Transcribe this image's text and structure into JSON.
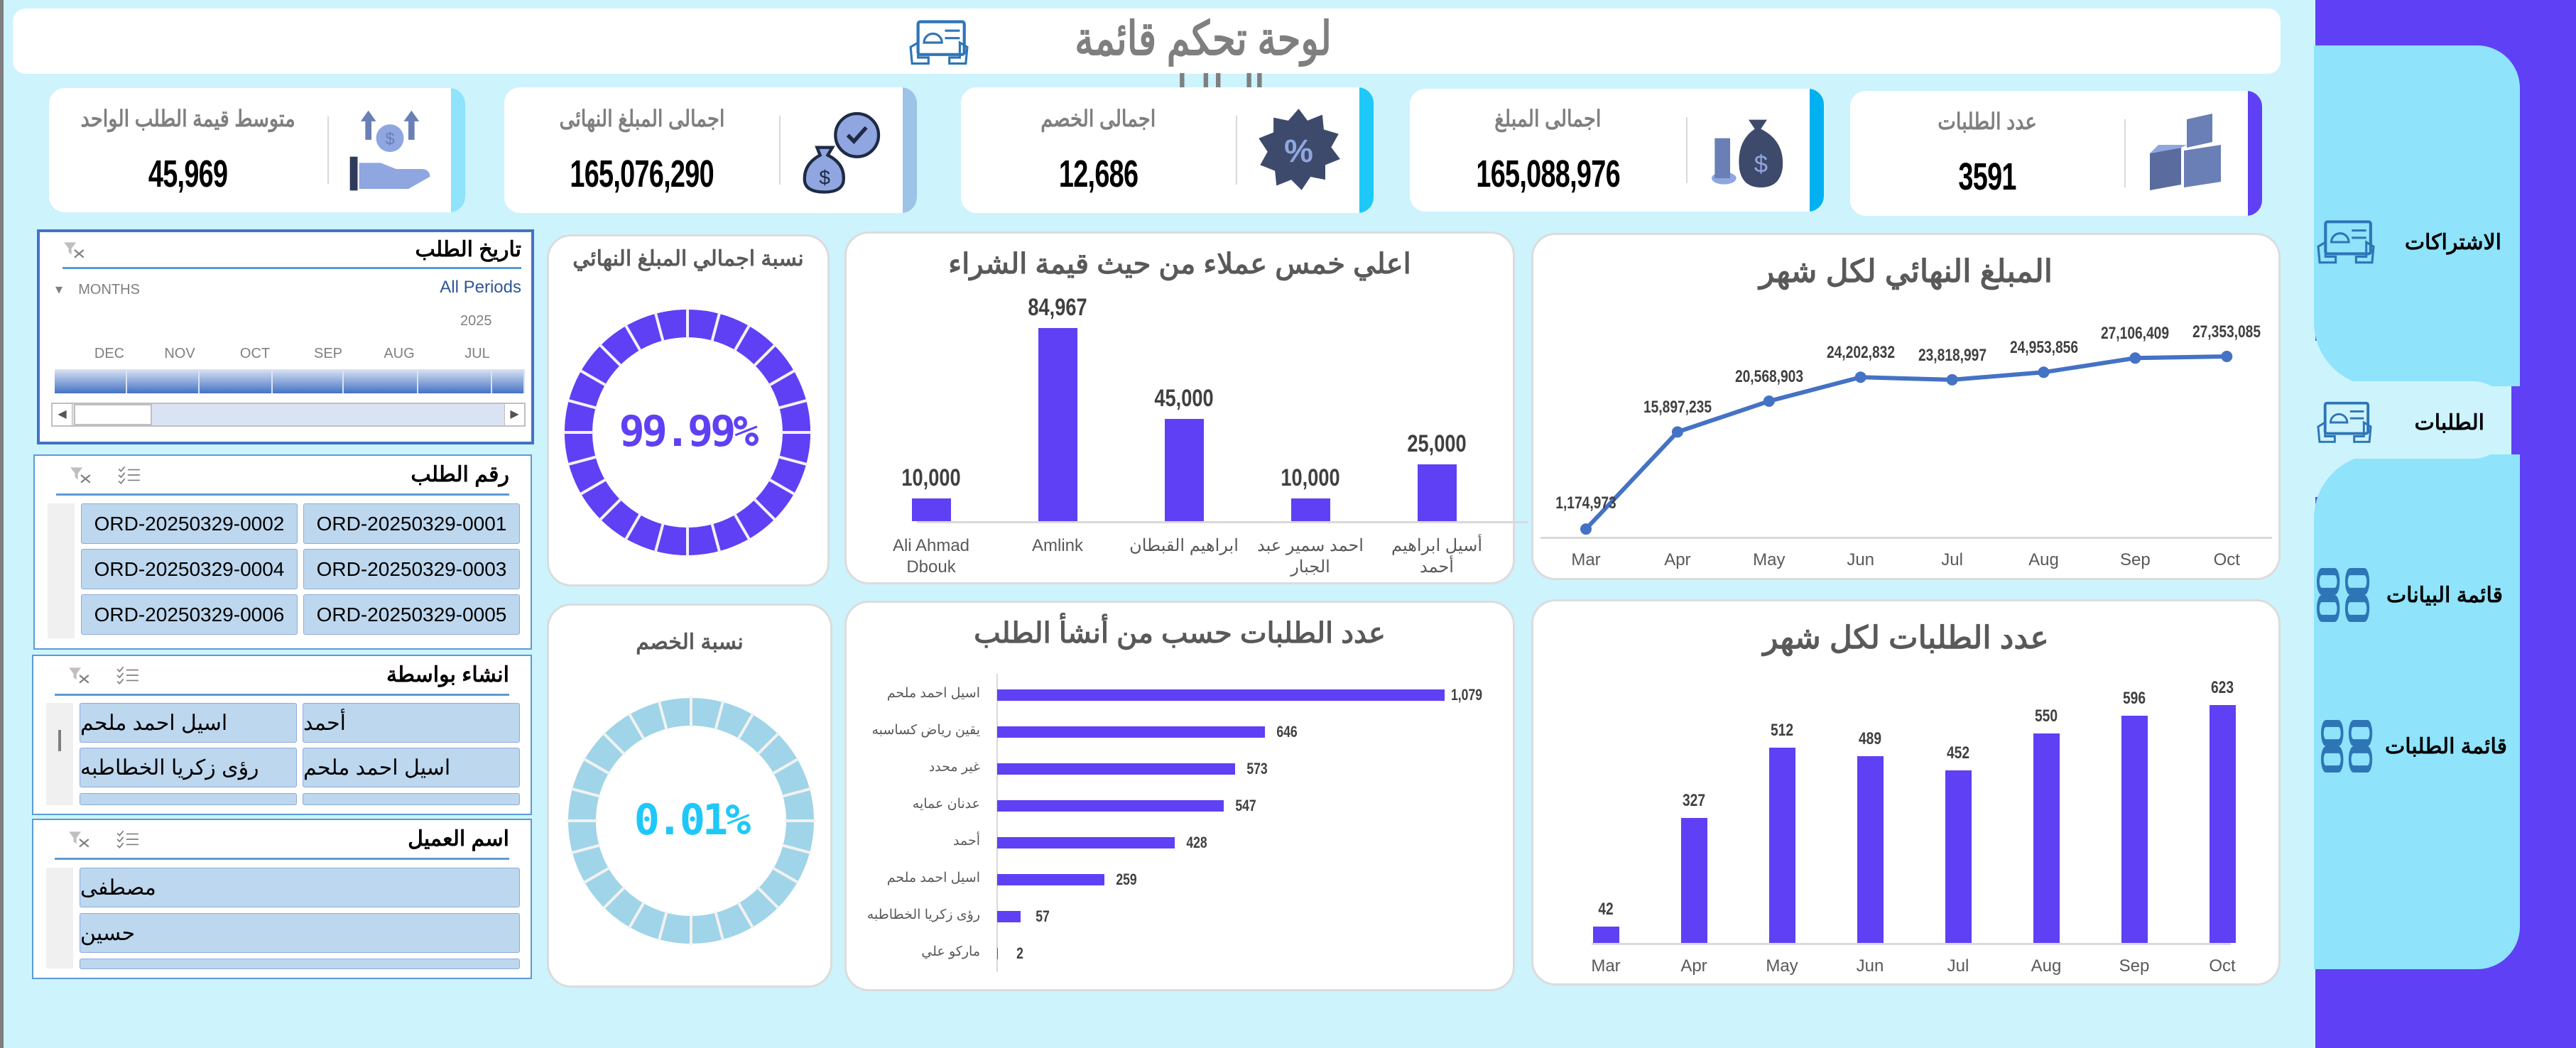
{
  "header": {
    "title": "لوحة تحكم قائمة الطلبات",
    "icon": "dashboard-tablet-icon"
  },
  "kpis": [
    {
      "label": "متوسط قيمة الطلب الواحد",
      "value": "45,969",
      "icon": "hand-money-icon",
      "accent": "#8fe3fb"
    },
    {
      "label": "اجمالى المبلغ النهائى",
      "value": "165,076,290",
      "icon": "money-bag-gear-icon",
      "accent": "#9dc3e6"
    },
    {
      "label": "اجمالى الخصم",
      "value": "12,686",
      "icon": "percent-badge-icon",
      "accent": "#1ec8f8"
    },
    {
      "label": "اجمالى المبلغ",
      "value": "165,088,976",
      "icon": "money-bag-coins-icon",
      "accent": "#00b0f0"
    },
    {
      "label": "عدد الطلبات",
      "value": "3591",
      "icon": "boxes-icon",
      "accent": "#5f40f4"
    }
  ],
  "slicers": {
    "date": {
      "title": "تاريخ الطلب",
      "level": "MONTHS",
      "selection": "All Periods",
      "year": "2025",
      "months": [
        "DEC",
        "NOV",
        "OCT",
        "SEP",
        "AUG",
        "JUL"
      ]
    },
    "order_number": {
      "title": "رقم الطلب",
      "items": [
        "ORD-20250329-0001",
        "ORD-20250329-0002",
        "ORD-20250329-0003",
        "ORD-20250329-0004",
        "ORD-20250329-0005",
        "ORD-20250329-0006"
      ]
    },
    "created_by": {
      "title": "انشاء بواسطة",
      "items": [
        "أحمد",
        "اسيل احمد ملحم",
        "اسيل احمد ملحم",
        "رؤى زكريا الخطاطبه"
      ]
    },
    "customer": {
      "title": "اسم العميل",
      "items": [
        "مصطفى",
        "حسين"
      ]
    }
  },
  "donuts": [
    {
      "title": "نسبة اجمالي المبلغ النهائي",
      "label": "99.99%",
      "value": 99.99,
      "color": "#5f40f4",
      "rest_color": "#5f40f4",
      "text_color": "#5f40f4"
    },
    {
      "title": "نسبة الخصم",
      "label": "0.01%",
      "value": 0.01,
      "color": "#1ec8f8",
      "rest_color": "#a0d4e8",
      "text_color": "#1ec8f8"
    }
  ],
  "chart_data": [
    {
      "id": "top_customers",
      "type": "bar",
      "title": "اعلي خمس عملاء من حيث قيمة الشراء",
      "categories": [
        "Ali Ahmad Dbouk",
        "Amlink",
        "ابراهيم القبطان",
        "احمد سمير عبد الجبار",
        "أسيل ابراهيم أحمد"
      ],
      "values": [
        10000,
        84967,
        45000,
        10000,
        25000
      ],
      "labels": [
        "10,000",
        "84,967",
        "45,000",
        "10,000",
        "25,000"
      ],
      "ylim": [
        0,
        100000
      ],
      "color": "#5f40f4",
      "grid": false
    },
    {
      "id": "final_amount_by_month",
      "type": "line",
      "title": "المبلغ النهائي لكل شهر",
      "categories": [
        "Mar",
        "Apr",
        "May",
        "Jun",
        "Jul",
        "Aug",
        "Sep",
        "Oct"
      ],
      "values": [
        1174973,
        15897235,
        20568903,
        24202832,
        23818997,
        24953856,
        27106409,
        27353085
      ],
      "labels": [
        "1,174,973",
        "15,897,235",
        "20,568,903",
        "24,202,832",
        "23,818,997",
        "24,953,856",
        "27,106,409",
        "27,353,085"
      ],
      "ylim": [
        0,
        35000000
      ],
      "color": "#4472c4",
      "grid": false
    },
    {
      "id": "orders_by_creator",
      "type": "bar",
      "orientation": "horizontal",
      "title": "عدد الطلبات حسب من أنشأ الطلب",
      "categories": [
        "اسيل احمد ملحم",
        "يقين رياض كساسبه",
        "غير محدد",
        "عدنان عمايه",
        "أحمد",
        "اسيل احمد ملحم",
        "رؤى زكريا الخطاطبه",
        "ماركو علي"
      ],
      "values": [
        1079,
        646,
        573,
        547,
        428,
        259,
        57,
        2
      ],
      "labels": [
        "1,079",
        "646",
        "573",
        "547",
        "428",
        "259",
        "57",
        "2"
      ],
      "xlim": [
        0,
        1079
      ],
      "color": "#5f40f4",
      "grid": false
    },
    {
      "id": "orders_by_month",
      "type": "bar",
      "title": "عدد الطلبات لكل شهر",
      "categories": [
        "Mar",
        "Apr",
        "May",
        "Jun",
        "Jul",
        "Aug",
        "Sep",
        "Oct"
      ],
      "values": [
        42,
        327,
        512,
        489,
        452,
        550,
        596,
        623
      ],
      "labels": [
        "42",
        "327",
        "512",
        "489",
        "452",
        "550",
        "596",
        "623"
      ],
      "ylim": [
        0,
        700
      ],
      "color": "#5f40f4",
      "grid": false
    }
  ],
  "sidebar": {
    "items": [
      {
        "label": "الاشتراكات",
        "icon": "dashboard-tablet-icon",
        "active": false
      },
      {
        "label": "الطلبات",
        "icon": "dashboard-tablet-icon",
        "active": true
      },
      {
        "label": "قائمة البيانات",
        "icon": "grid-list-icon",
        "active": false
      },
      {
        "label": "قائمة الطلبات",
        "icon": "grid-list-icon",
        "active": false
      }
    ]
  },
  "colors": {
    "background": "#cdf3fd",
    "sidebar": "#5f40f4",
    "sidebar_panel": "#8fe3fb",
    "bar": "#5f40f4",
    "line": "#4472c4"
  }
}
